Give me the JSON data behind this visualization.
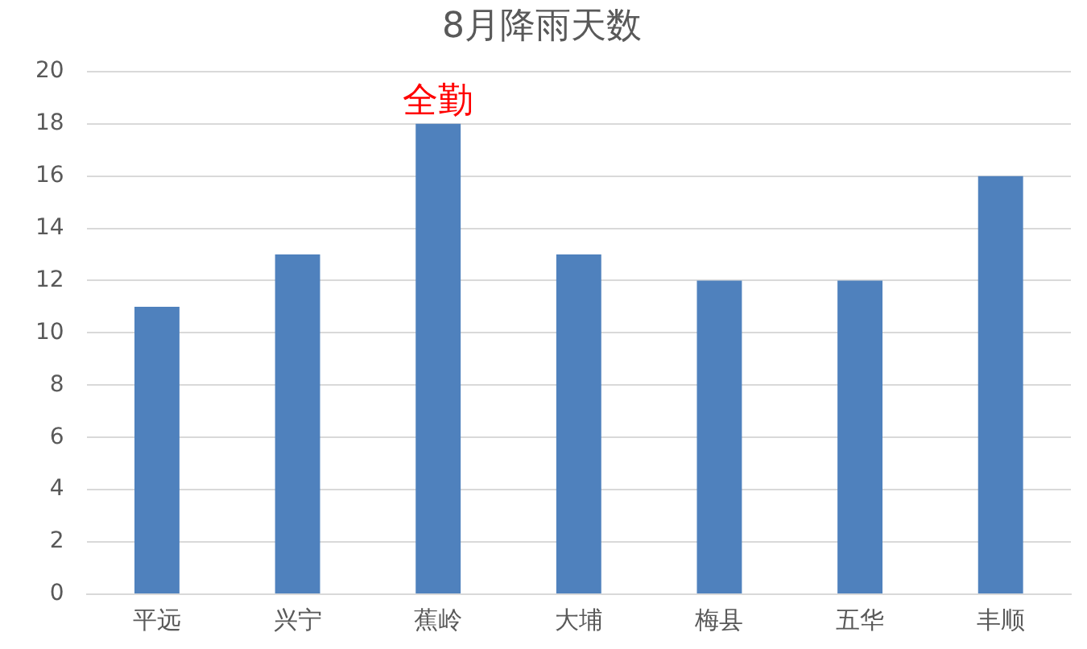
{
  "chart_data": {
    "type": "bar",
    "title": "8月降雨天数",
    "categories": [
      "平远",
      "兴宁",
      "蕉岭",
      "大埔",
      "梅县",
      "五华",
      "丰顺"
    ],
    "values": [
      11,
      13,
      18,
      13,
      12,
      12,
      16
    ],
    "color": "#4f81bd",
    "ylim": [
      0,
      20
    ],
    "yticks": [
      0,
      2,
      4,
      6,
      8,
      10,
      12,
      14,
      16,
      18,
      20
    ],
    "grid": "y",
    "annotations": [
      {
        "text": "全勤",
        "x": "蕉岭",
        "y": 18
      }
    ]
  }
}
